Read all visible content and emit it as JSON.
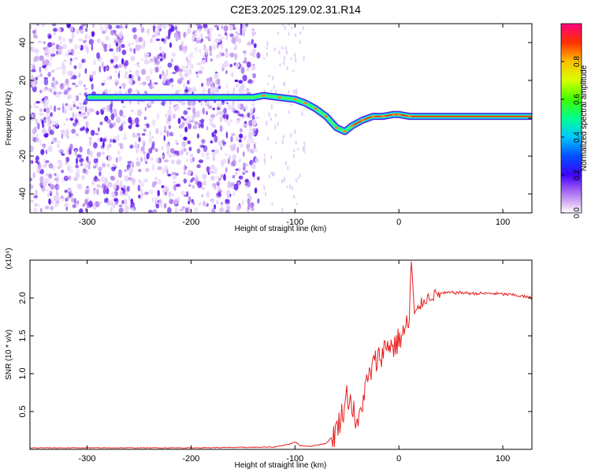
{
  "title": "C2E3.2025.129.02.31.R14",
  "chart_data": [
    {
      "type": "heatmap",
      "xlabel": "Height of straight line (km)",
      "ylabel": "Frequency (Hz)",
      "xlim": [
        -355,
        128
      ],
      "ylim": [
        -50,
        50
      ],
      "xticks": [
        -300,
        -200,
        -100,
        0,
        100
      ],
      "yticks": [
        -40,
        -20,
        0,
        20,
        40
      ],
      "colorbar": {
        "label": "Normalized spectral amplitude",
        "range": [
          0.0,
          1.0
        ],
        "ticks": [
          "0.0",
          "0.2",
          "0.4",
          "0.6",
          "0.8"
        ],
        "tick_values": [
          0.0,
          0.2,
          0.4,
          0.6,
          0.8
        ]
      },
      "noise_region": {
        "x_range": [
          -355,
          -135
        ],
        "y_range": [
          -50,
          50
        ]
      },
      "tone_track": {
        "x": [
          -298,
          -280,
          -260,
          -240,
          -220,
          -200,
          -180,
          -160,
          -140,
          -130,
          -115,
          -100,
          -90,
          -80,
          -70,
          -60,
          -52,
          -45,
          -35,
          -25,
          -15,
          -5,
          0,
          10,
          128
        ],
        "y": [
          11,
          11,
          11,
          11,
          11,
          11,
          11,
          11,
          11,
          12,
          11,
          10,
          8,
          5,
          1,
          -5,
          -7,
          -4,
          -1,
          1,
          1,
          2,
          2,
          1,
          1
        ]
      }
    },
    {
      "type": "line",
      "xlabel": "Height of straight line (km)",
      "ylabel": "SNR (10 * v/v)",
      "y_multiplier": "(x10⁴)",
      "xlim": [
        -355,
        128
      ],
      "ylim": [
        0,
        2.5
      ],
      "xticks": [
        -300,
        -200,
        -100,
        0,
        100
      ],
      "yticks": [
        0.5,
        1.0,
        1.5,
        2.0
      ],
      "ytick_labels": [
        "0.5",
        "1.0",
        "1.5",
        "2.0"
      ],
      "series": [
        {
          "color": "#e82020",
          "x": [
            -355,
            -200,
            -120,
            -105,
            -100,
            -95,
            -85,
            -70,
            -62,
            -55,
            -50,
            -45,
            -40,
            -35,
            -30,
            -25,
            -20,
            -15,
            -10,
            -5,
            0,
            5,
            10,
            12,
            15,
            20,
            25,
            30,
            40,
            50,
            60,
            70,
            80,
            90,
            100,
            110,
            120,
            128
          ],
          "y": [
            0.02,
            0.02,
            0.03,
            0.07,
            0.1,
            0.05,
            0.04,
            0.08,
            0.2,
            0.45,
            0.72,
            0.6,
            0.25,
            0.65,
            0.9,
            1.1,
            1.2,
            1.3,
            1.4,
            1.35,
            1.45,
            1.55,
            1.7,
            2.5,
            1.75,
            1.9,
            1.98,
            2.02,
            2.06,
            2.07,
            2.07,
            2.06,
            2.06,
            2.06,
            2.05,
            2.04,
            2.02,
            2.0
          ]
        }
      ]
    }
  ]
}
